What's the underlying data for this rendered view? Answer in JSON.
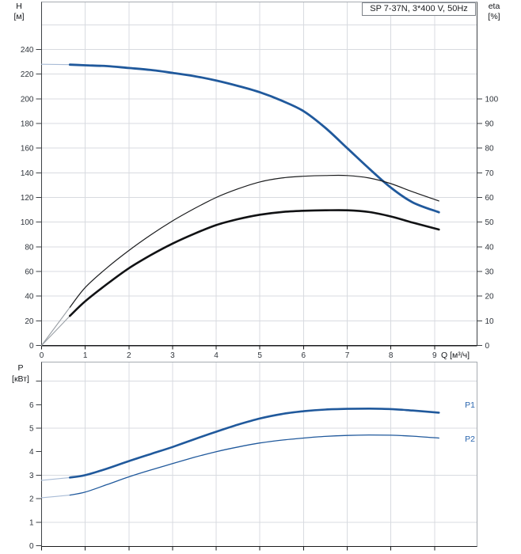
{
  "chart_data": [
    {
      "id": "head-and-efficiency",
      "type": "line",
      "title": "SP 7-37N, 3*400 V, 50Hz",
      "grid": true,
      "x": {
        "label": "Q [м³/ч]",
        "ticks": [
          0,
          1,
          2,
          3,
          4,
          5,
          6,
          7,
          8,
          9
        ],
        "grid_ticks": [
          1,
          2,
          3,
          4,
          5,
          6,
          7,
          8,
          9
        ],
        "range": [
          0,
          9.99
        ]
      },
      "y_left": {
        "label_lines": [
          "H",
          "[м]"
        ],
        "ticks": [
          0,
          20,
          40,
          60,
          80,
          100,
          120,
          140,
          160,
          180,
          200,
          220,
          240
        ],
        "grid_ticks": [
          20,
          40,
          60,
          80,
          100,
          120,
          140,
          160,
          180,
          200,
          220,
          240,
          260
        ],
        "range": [
          0,
          278
        ]
      },
      "y_right": {
        "label_lines": [
          "eta",
          "[%]"
        ],
        "ticks": [
          0,
          10,
          20,
          30,
          40,
          50,
          60,
          70,
          80,
          90,
          100
        ],
        "range": [
          0,
          139
        ]
      },
      "series": [
        {
          "name": "head-curve",
          "y_axis": "left",
          "color": "#20599c",
          "width": 2.8,
          "thin_lead_until": 0.65,
          "thin_color": "#a9bcd6",
          "points": [
            [
              0,
              228
            ],
            [
              0.65,
              227.7
            ],
            [
              1,
              227.2
            ],
            [
              1.5,
              226.5
            ],
            [
              2,
              225
            ],
            [
              2.5,
              223.4
            ],
            [
              3,
              221
            ],
            [
              3.5,
              218.4
            ],
            [
              4,
              214.8
            ],
            [
              4.5,
              210.4
            ],
            [
              5,
              205.3
            ],
            [
              5.5,
              198.5
            ],
            [
              6,
              190
            ],
            [
              6.5,
              176.5
            ],
            [
              7,
              160
            ],
            [
              7.5,
              143.5
            ],
            [
              8,
              128
            ],
            [
              8.5,
              116
            ],
            [
              9.1,
              108
            ]
          ]
        },
        {
          "name": "eta-thin-curve",
          "y_axis": "right",
          "color": "#1b1c1e",
          "width": 1.2,
          "thin_lead_until": 0.65,
          "thin_color": "#9aa0a6",
          "points": [
            [
              0,
              0
            ],
            [
              0.65,
              15.5
            ],
            [
              1,
              23.5
            ],
            [
              1.5,
              31.5
            ],
            [
              2,
              38.5
            ],
            [
              2.5,
              44.8
            ],
            [
              3,
              50.5
            ],
            [
              3.5,
              55.5
            ],
            [
              4,
              60
            ],
            [
              4.5,
              63.5
            ],
            [
              5,
              66.3
            ],
            [
              5.5,
              67.9
            ],
            [
              6,
              68.6
            ],
            [
              6.5,
              68.9
            ],
            [
              7,
              68.9
            ],
            [
              7.5,
              67.9
            ],
            [
              8,
              65.6
            ],
            [
              8.5,
              62.3
            ],
            [
              9.1,
              58.6
            ]
          ]
        },
        {
          "name": "eta-thick-curve",
          "y_axis": "right",
          "color": "#111214",
          "width": 2.6,
          "thin_lead_until": 0.65,
          "thin_color": "#9aa0a6",
          "points": [
            [
              0,
              0
            ],
            [
              0.65,
              12
            ],
            [
              1,
              17.9
            ],
            [
              1.5,
              24.9
            ],
            [
              2,
              31.3
            ],
            [
              2.5,
              36.6
            ],
            [
              3,
              41.3
            ],
            [
              3.5,
              45.3
            ],
            [
              4,
              48.8
            ],
            [
              4.5,
              51.2
            ],
            [
              5,
              53
            ],
            [
              5.5,
              54.1
            ],
            [
              6,
              54.6
            ],
            [
              6.5,
              54.8
            ],
            [
              7,
              54.8
            ],
            [
              7.5,
              54.1
            ],
            [
              8,
              52.3
            ],
            [
              8.5,
              49.8
            ],
            [
              9.1,
              47
            ]
          ]
        }
      ]
    },
    {
      "id": "power",
      "type": "line",
      "grid": true,
      "x": {
        "grid_ticks": [
          1,
          2,
          3,
          4,
          5,
          6,
          7,
          8,
          9
        ],
        "tick_marks": [
          0,
          1,
          2,
          3,
          4,
          5,
          6,
          7,
          8,
          9
        ],
        "range": [
          0,
          9.99
        ]
      },
      "y": {
        "label_lines": [
          "P",
          "[кВт]"
        ],
        "ticks": [
          0,
          1,
          2,
          3,
          4,
          5,
          6
        ],
        "tick_marks": [
          0,
          1,
          2,
          3,
          4,
          5,
          6,
          7
        ],
        "grid_ticks": [
          1,
          3,
          5,
          7
        ],
        "range": [
          0,
          7.8
        ]
      },
      "series": [
        {
          "name": "p1-curve",
          "label": "P1",
          "color": "#20599c",
          "width": 2.6,
          "thin_lead_until": 0.65,
          "thin_color": "#a9bcd6",
          "points": [
            [
              0,
              2.78
            ],
            [
              0.65,
              2.9
            ],
            [
              1,
              3
            ],
            [
              1.5,
              3.28
            ],
            [
              2,
              3.6
            ],
            [
              2.5,
              3.9
            ],
            [
              3,
              4.2
            ],
            [
              3.5,
              4.53
            ],
            [
              4,
              4.85
            ],
            [
              4.5,
              5.15
            ],
            [
              5,
              5.41
            ],
            [
              5.5,
              5.6
            ],
            [
              6,
              5.72
            ],
            [
              6.5,
              5.79
            ],
            [
              7,
              5.82
            ],
            [
              7.5,
              5.83
            ],
            [
              8,
              5.81
            ],
            [
              8.5,
              5.75
            ],
            [
              9.1,
              5.66
            ]
          ]
        },
        {
          "name": "p2-curve",
          "label": "P2",
          "color": "#20599c",
          "width": 1.3,
          "thin_lead_until": 0.65,
          "thin_color": "#a9bcd6",
          "points": [
            [
              0,
              2.04
            ],
            [
              0.65,
              2.15
            ],
            [
              1,
              2.28
            ],
            [
              1.5,
              2.6
            ],
            [
              2,
              2.93
            ],
            [
              2.5,
              3.22
            ],
            [
              3,
              3.49
            ],
            [
              3.5,
              3.76
            ],
            [
              4,
              4
            ],
            [
              4.5,
              4.2
            ],
            [
              5,
              4.37
            ],
            [
              5.5,
              4.49
            ],
            [
              6,
              4.58
            ],
            [
              6.5,
              4.65
            ],
            [
              7,
              4.69
            ],
            [
              7.5,
              4.71
            ],
            [
              8,
              4.7
            ],
            [
              8.5,
              4.66
            ],
            [
              9.1,
              4.58
            ]
          ]
        }
      ]
    }
  ],
  "colors": {
    "curve_blue": "#20599c",
    "curve_black": "#111214",
    "grid": "#d8dbe0",
    "frame": "#a6abb1",
    "axis_dark": "#3e4246",
    "axis_black": "#1a1b1d"
  }
}
